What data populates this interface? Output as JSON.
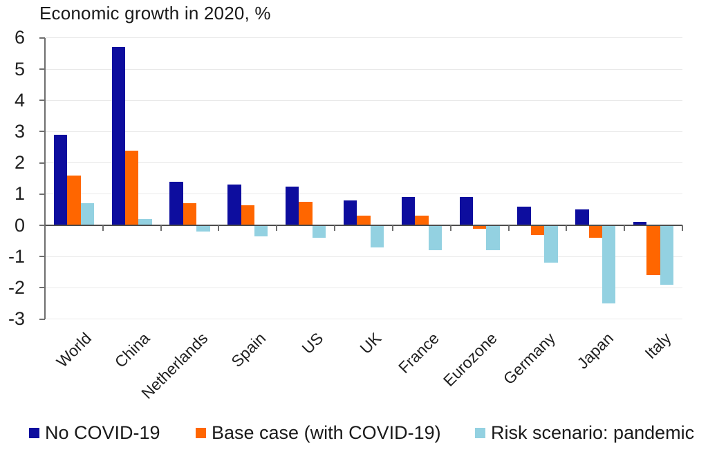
{
  "chart_data": {
    "type": "bar",
    "title": "Economic growth in 2020, %",
    "categories": [
      "World",
      "China",
      "Netherlands",
      "Spain",
      "US",
      "UK",
      "France",
      "Eurozone",
      "Germany",
      "Japan",
      "Italy"
    ],
    "series": [
      {
        "name": "No COVID-19",
        "color": "#0d0d9e",
        "values": [
          2.9,
          5.7,
          1.4,
          1.3,
          1.25,
          0.8,
          0.9,
          0.9,
          0.6,
          0.5,
          0.1
        ]
      },
      {
        "name": "Base case (with COVID-19)",
        "color": "#ff6600",
        "values": [
          1.6,
          2.4,
          0.7,
          0.65,
          0.75,
          0.3,
          0.3,
          -0.1,
          -0.3,
          -0.4,
          -1.6
        ]
      },
      {
        "name": "Risk scenario: pandemic",
        "color": "#93d1e1",
        "values": [
          0.7,
          0.2,
          -0.2,
          -0.35,
          -0.4,
          -0.7,
          -0.8,
          -0.8,
          -1.2,
          -2.5,
          -1.9
        ]
      }
    ],
    "xlabel": "",
    "ylabel": "",
    "ylim": [
      -3,
      6
    ],
    "yticks": [
      6,
      5,
      4,
      3,
      2,
      1,
      0,
      -1,
      -2,
      -3
    ],
    "grid": true,
    "legend_position": "bottom"
  },
  "style_colors": {
    "gridline": "#e9e9e9",
    "zero_line": "#4d4d4d",
    "axis": "#6e6e6e",
    "text": "#1f1f1f"
  }
}
